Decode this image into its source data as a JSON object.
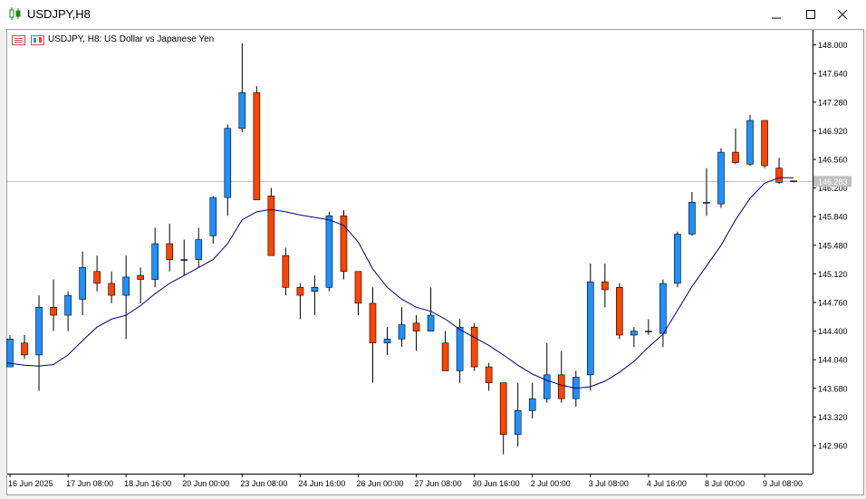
{
  "window": {
    "title": "USDJPY,H8"
  },
  "chart_header": {
    "label": "USDJPY, H8:  US Dollar vs Japanese Yen"
  },
  "colors": {
    "bull": "#1e90ff",
    "bear": "#ff4500",
    "ma": "#000080",
    "grid": "#c0c0c0"
  },
  "chart_data": {
    "type": "candlestick",
    "symbol": "USDJPY",
    "timeframe": "H8",
    "title": "USDJPY, H8:  US Dollar vs Japanese Yen",
    "ylim": [
      142.65,
      148.08
    ],
    "y_ticks": [
      "148.000",
      "147.640",
      "147.280",
      "146.920",
      "146.560",
      "146.200",
      "145.840",
      "145.480",
      "145.120",
      "144.760",
      "144.400",
      "144.040",
      "143.680",
      "143.320",
      "142.960"
    ],
    "x_ticks": [
      "16 Jun 2025",
      "17 Jun 08:00",
      "18 Jun 16:00",
      "20 Jun 00:00",
      "23 Jun 08:00",
      "24 Jun 16:00",
      "26 Jun 00:00",
      "27 Jun 08:00",
      "30 Jun 16:00",
      "2 Jul 00:00",
      "3 Jul 08:00",
      "4 Jul 16:00",
      "8 Jul 00:00",
      "9 Jul 08:00"
    ],
    "current_price_label": "146.283",
    "current_price": 146.283,
    "candles": [
      {
        "o": 143.95,
        "h": 144.35,
        "l": 143.95,
        "c": 144.3
      },
      {
        "o": 144.25,
        "h": 144.35,
        "l": 144.05,
        "c": 144.1
      },
      {
        "o": 144.1,
        "h": 144.85,
        "l": 143.65,
        "c": 144.7
      },
      {
        "o": 144.7,
        "h": 145.05,
        "l": 144.4,
        "c": 144.6
      },
      {
        "o": 144.6,
        "h": 144.9,
        "l": 144.4,
        "c": 144.85
      },
      {
        "o": 144.8,
        "h": 145.4,
        "l": 144.6,
        "c": 145.2
      },
      {
        "o": 145.15,
        "h": 145.35,
        "l": 144.9,
        "c": 145.0
      },
      {
        "o": 145.0,
        "h": 145.15,
        "l": 144.75,
        "c": 144.85
      },
      {
        "o": 144.85,
        "h": 145.35,
        "l": 144.3,
        "c": 145.08
      },
      {
        "o": 145.1,
        "h": 145.2,
        "l": 144.75,
        "c": 145.05
      },
      {
        "o": 145.05,
        "h": 145.7,
        "l": 144.95,
        "c": 145.5
      },
      {
        "o": 145.5,
        "h": 145.75,
        "l": 145.15,
        "c": 145.3
      },
      {
        "o": 145.3,
        "h": 145.55,
        "l": 145.1,
        "c": 145.3
      },
      {
        "o": 145.3,
        "h": 145.7,
        "l": 145.2,
        "c": 145.55
      },
      {
        "o": 145.6,
        "h": 146.1,
        "l": 145.5,
        "c": 146.08
      },
      {
        "o": 146.08,
        "h": 147.0,
        "l": 145.85,
        "c": 146.95
      },
      {
        "o": 146.95,
        "h": 148.02,
        "l": 146.9,
        "c": 147.4
      },
      {
        "o": 147.4,
        "h": 147.48,
        "l": 146.05,
        "c": 146.05
      },
      {
        "o": 146.1,
        "h": 146.2,
        "l": 145.35,
        "c": 145.35
      },
      {
        "o": 145.35,
        "h": 145.45,
        "l": 144.85,
        "c": 144.95
      },
      {
        "o": 144.95,
        "h": 145.0,
        "l": 144.55,
        "c": 144.85
      },
      {
        "o": 144.9,
        "h": 145.1,
        "l": 144.6,
        "c": 144.95
      },
      {
        "o": 144.95,
        "h": 145.9,
        "l": 144.9,
        "c": 145.85
      },
      {
        "o": 145.85,
        "h": 145.92,
        "l": 145.05,
        "c": 145.15
      },
      {
        "o": 145.15,
        "h": 145.15,
        "l": 144.6,
        "c": 144.75
      },
      {
        "o": 144.75,
        "h": 144.95,
        "l": 143.75,
        "c": 144.25
      },
      {
        "o": 144.25,
        "h": 144.45,
        "l": 144.1,
        "c": 144.3
      },
      {
        "o": 144.3,
        "h": 144.7,
        "l": 144.2,
        "c": 144.48
      },
      {
        "o": 144.5,
        "h": 144.6,
        "l": 144.15,
        "c": 144.4
      },
      {
        "o": 144.4,
        "h": 144.95,
        "l": 144.4,
        "c": 144.6
      },
      {
        "o": 144.25,
        "h": 144.4,
        "l": 143.9,
        "c": 143.9
      },
      {
        "o": 143.9,
        "h": 144.55,
        "l": 143.75,
        "c": 144.45
      },
      {
        "o": 144.45,
        "h": 144.5,
        "l": 143.9,
        "c": 143.95
      },
      {
        "o": 143.95,
        "h": 144.0,
        "l": 143.65,
        "c": 143.75
      },
      {
        "o": 143.75,
        "h": 143.75,
        "l": 142.85,
        "c": 143.1
      },
      {
        "o": 143.1,
        "h": 143.75,
        "l": 142.95,
        "c": 143.4
      },
      {
        "o": 143.4,
        "h": 143.75,
        "l": 143.3,
        "c": 143.55
      },
      {
        "o": 143.55,
        "h": 144.25,
        "l": 143.5,
        "c": 143.85
      },
      {
        "o": 143.85,
        "h": 144.15,
        "l": 143.5,
        "c": 143.55
      },
      {
        "o": 143.55,
        "h": 143.9,
        "l": 143.45,
        "c": 143.82
      },
      {
        "o": 143.85,
        "h": 145.25,
        "l": 143.65,
        "c": 145.02
      },
      {
        "o": 145.02,
        "h": 145.25,
        "l": 144.7,
        "c": 144.92
      },
      {
        "o": 144.95,
        "h": 145.0,
        "l": 144.3,
        "c": 144.35
      },
      {
        "o": 144.35,
        "h": 144.45,
        "l": 144.2,
        "c": 144.4
      },
      {
        "o": 144.4,
        "h": 144.55,
        "l": 144.35,
        "c": 144.4
      },
      {
        "o": 144.37,
        "h": 145.05,
        "l": 144.2,
        "c": 145.0
      },
      {
        "o": 145.0,
        "h": 145.65,
        "l": 144.95,
        "c": 145.62
      },
      {
        "o": 145.62,
        "h": 146.15,
        "l": 145.6,
        "c": 146.02
      },
      {
        "o": 146.02,
        "h": 146.45,
        "l": 145.85,
        "c": 146.02
      },
      {
        "o": 146.0,
        "h": 146.7,
        "l": 145.95,
        "c": 146.65
      },
      {
        "o": 146.65,
        "h": 146.95,
        "l": 146.5,
        "c": 146.52
      },
      {
        "o": 146.5,
        "h": 147.12,
        "l": 146.48,
        "c": 147.05
      },
      {
        "o": 147.05,
        "h": 147.05,
        "l": 146.45,
        "c": 146.48
      },
      {
        "o": 146.45,
        "h": 146.58,
        "l": 146.25,
        "c": 146.27
      },
      {
        "o": 146.29,
        "h": 146.29,
        "l": 146.27,
        "c": 146.28
      }
    ],
    "ma": [
      144.0,
      143.97,
      143.96,
      143.98,
      144.1,
      144.28,
      144.45,
      144.55,
      144.6,
      144.72,
      144.87,
      145.0,
      145.1,
      145.2,
      145.3,
      145.5,
      145.8,
      145.9,
      145.93,
      145.9,
      145.86,
      145.83,
      145.8,
      145.73,
      145.52,
      145.18,
      144.95,
      144.8,
      144.7,
      144.65,
      144.55,
      144.42,
      144.32,
      144.22,
      144.1,
      143.97,
      143.86,
      143.78,
      143.72,
      143.68,
      143.7,
      143.77,
      143.88,
      144.02,
      144.2,
      144.36,
      144.66,
      144.96,
      145.22,
      145.48,
      145.8,
      146.07,
      146.26,
      146.33,
      146.33
    ]
  }
}
